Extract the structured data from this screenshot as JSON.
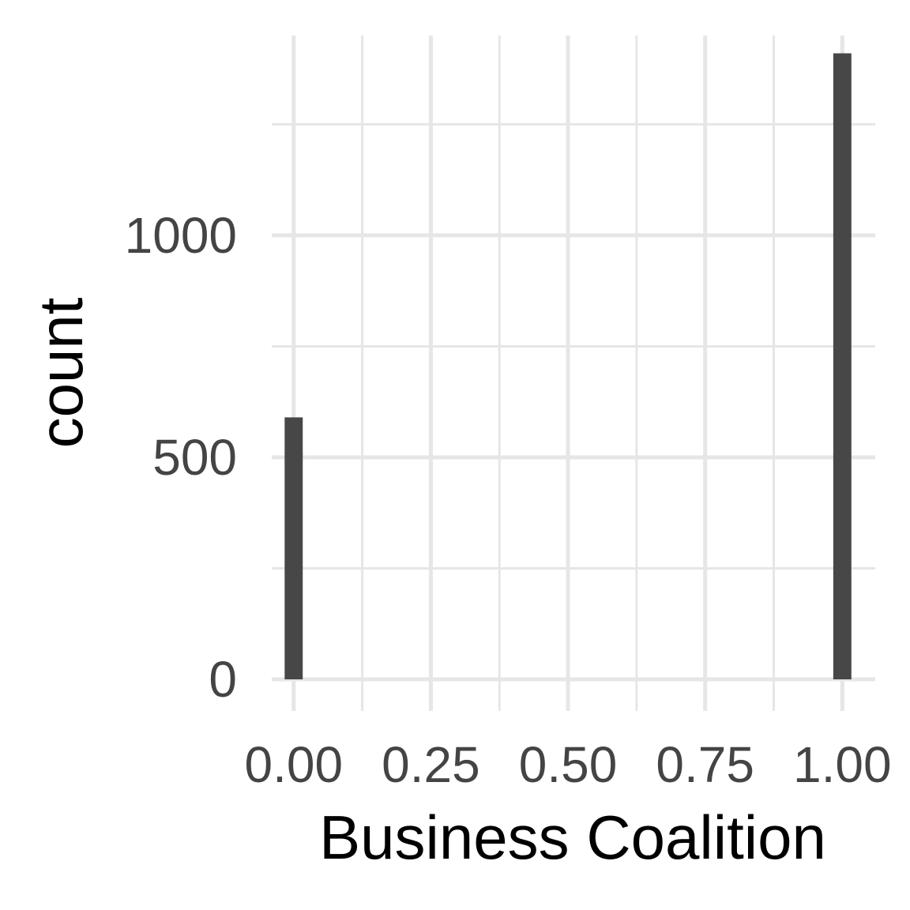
{
  "chart_data": {
    "type": "bar",
    "title": "",
    "xlabel": "Business Coalition",
    "ylabel": "count",
    "xlim": [
      -0.04,
      1.06
    ],
    "ylim": [
      0,
      1450
    ],
    "x_ticks": [
      0.0,
      0.25,
      0.5,
      0.75,
      1.0
    ],
    "x_tick_labels": [
      "0.00",
      "0.25",
      "0.50",
      "0.75",
      "1.00"
    ],
    "x_minor_ticks": [
      0.125,
      0.375,
      0.625,
      0.875
    ],
    "y_ticks": [
      0,
      500,
      1000
    ],
    "y_tick_labels": [
      "0",
      "500",
      "1000"
    ],
    "y_minor_ticks": [
      250,
      750,
      1250
    ],
    "bar_width": 0.033,
    "bars": [
      {
        "x": 0,
        "value": 590
      },
      {
        "x": 1,
        "value": 1410
      }
    ],
    "bar_color": "#474747",
    "grid": true,
    "legend": "none"
  }
}
